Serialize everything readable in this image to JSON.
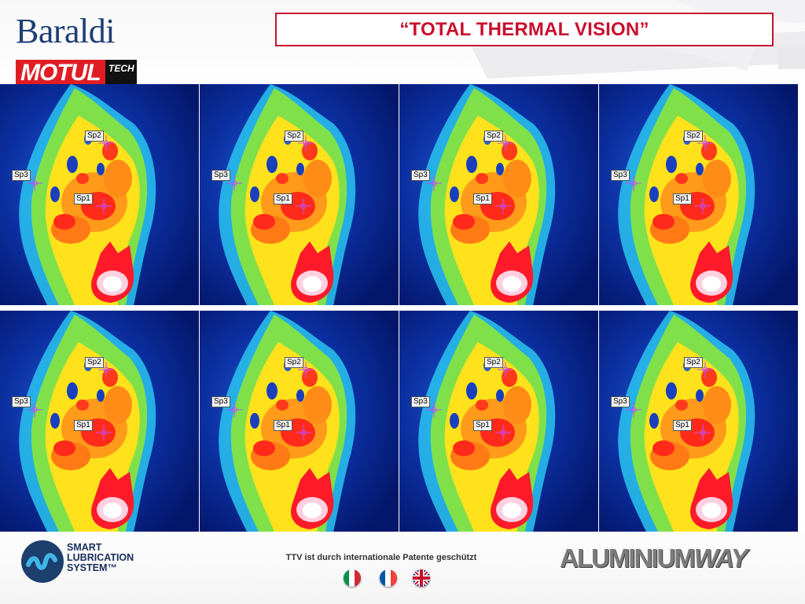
{
  "header": {
    "brand_name": "Baraldi",
    "brand_sub": "MOTUL",
    "brand_sub_tag": "TECH",
    "title": "“TOTAL THERMAL VISION”"
  },
  "thermal": {
    "rows": 2,
    "columns": 4,
    "spot_labels": [
      "Sp2",
      "Sp3",
      "Sp1"
    ]
  },
  "footer": {
    "sls_line1": "SMART",
    "sls_line2": "LUBRICATION",
    "sls_line3": "SYSTEM™",
    "patent_notice": "TTV ist durch internationale Patente geschützt",
    "flags": [
      "italy-flag-icon",
      "france-flag-icon",
      "uk-flag-icon"
    ],
    "brand_a": "ALUMINIUM",
    "brand_b": "WAY"
  },
  "colors": {
    "title_red": "#c8102e",
    "brand_blue": "#1d3f73",
    "thermal_cold": "#06207a",
    "thermal_hot": "#ff1a1a"
  }
}
